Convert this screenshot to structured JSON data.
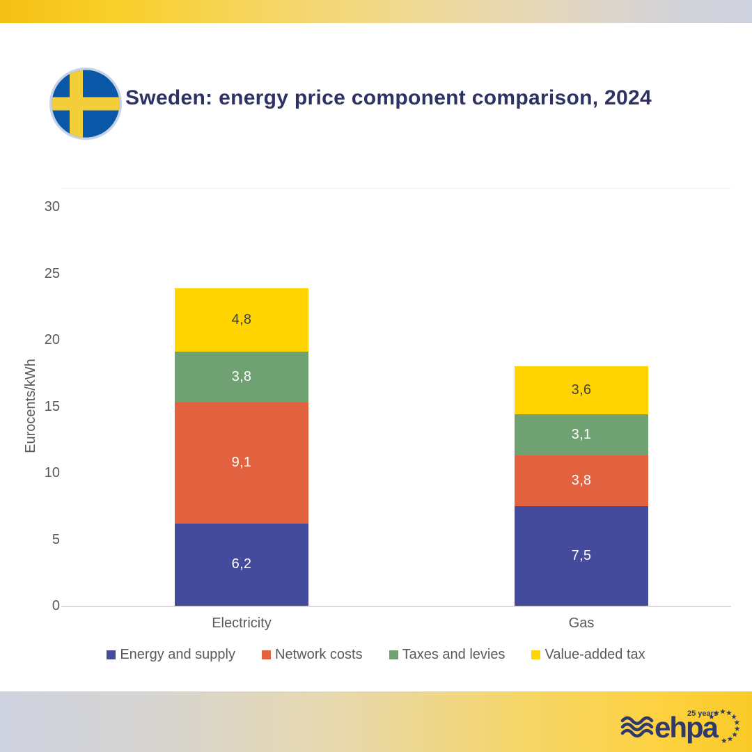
{
  "header": {
    "title": "Sweden: energy price component comparison, 2024",
    "flag": "sweden",
    "title_color": "#2D3164"
  },
  "chart_data": {
    "type": "bar",
    "stacked": true,
    "title": "Sweden: energy price component comparison, 2024",
    "categories": [
      "Electricity",
      "Gas"
    ],
    "series": [
      {
        "name": "Energy and supply",
        "color": "#454B9C",
        "values": [
          6.2,
          7.5
        ],
        "labels": [
          "6,2",
          "7,5"
        ],
        "label_color": "#FFFFFF"
      },
      {
        "name": "Network costs",
        "color": "#E2613E",
        "values": [
          9.1,
          3.8
        ],
        "labels": [
          "9,1",
          "3,8"
        ],
        "label_color": "#FFFFFF"
      },
      {
        "name": "Taxes and levies",
        "color": "#6FA173",
        "values": [
          3.8,
          3.1
        ],
        "labels": [
          "3,8",
          "3,1"
        ],
        "label_color": "#FFFFFF"
      },
      {
        "name": "Value-added tax",
        "color": "#FFD400",
        "values": [
          4.8,
          3.6
        ],
        "labels": [
          "4,8",
          "3,6"
        ],
        "label_color": "#404040"
      }
    ],
    "totals": [
      23.9,
      18.0
    ],
    "xlabel": "",
    "ylabel": "Eurocents/kWh",
    "ylim": [
      0,
      30
    ],
    "yticks": [
      0,
      5,
      10,
      15,
      20,
      25,
      30
    ],
    "grid": false,
    "legend_position": "bottom",
    "axis_text_color": "#595959",
    "axis_line_color": "#D9D9D9"
  },
  "footer": {
    "logo_text": "ehpa",
    "logo_tagline": "25 years",
    "logo_color": "#2F3A6B"
  }
}
